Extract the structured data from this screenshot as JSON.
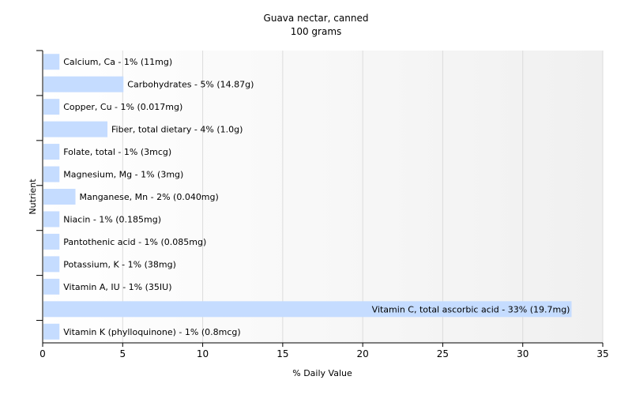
{
  "chart_data": {
    "type": "bar",
    "orientation": "horizontal",
    "title": "Guava nectar, canned",
    "subtitle": "100 grams",
    "xlabel": "% Daily Value",
    "ylabel": "Nutrient",
    "xlim": [
      0,
      35
    ],
    "xticks": [
      0,
      5,
      10,
      15,
      20,
      25,
      30,
      35
    ],
    "grid": "vertical",
    "bar_color": "#c5dcff",
    "categories": [
      "Calcium, Ca",
      "Carbohydrates",
      "Copper, Cu",
      "Fiber, total dietary",
      "Folate, total",
      "Magnesium, Mg",
      "Manganese, Mn",
      "Niacin",
      "Pantothenic acid",
      "Potassium, K",
      "Vitamin A, IU",
      "Vitamin C, total ascorbic acid",
      "Vitamin K (phylloquinone)"
    ],
    "values": [
      1,
      5,
      1,
      4,
      1,
      1,
      2,
      1,
      1,
      1,
      1,
      33,
      1
    ],
    "labels": [
      "Calcium, Ca - 1% (11mg)",
      "Carbohydrates - 5% (14.87g)",
      "Copper, Cu - 1% (0.017mg)",
      "Fiber, total dietary - 4% (1.0g)",
      "Folate, total - 1% (3mcg)",
      "Magnesium, Mg - 1% (3mg)",
      "Manganese, Mn - 2% (0.040mg)",
      "Niacin - 1% (0.185mg)",
      "Pantothenic acid - 1% (0.085mg)",
      "Potassium, K - 1% (38mg)",
      "Vitamin A, IU - 1% (35IU)",
      "Vitamin C, total ascorbic acid - 33% (19.7mg)",
      "Vitamin K (phylloquinone) - 1% (0.8mcg)"
    ]
  }
}
